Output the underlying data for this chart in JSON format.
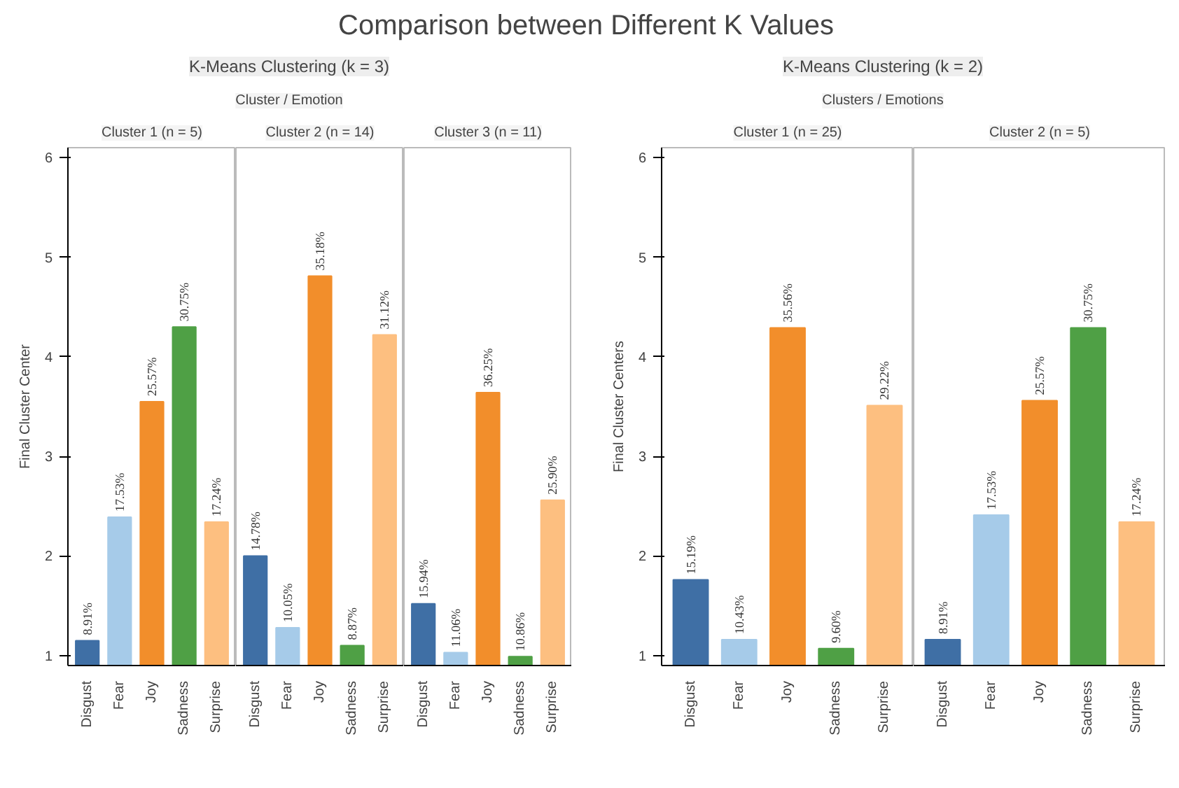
{
  "chart_data": [
    {
      "type": "other",
      "title": "Comparison between Different K Values"
    },
    {
      "type": "other",
      "title": "K-Means Clustering (k = 3)",
      "subtitle": "Cluster / Emotion"
    },
    {
      "type": "bar",
      "title": "Cluster 1 (n = 5)",
      "ylabel": "Final Cluster Center",
      "categories": [
        "Disgust",
        "Fear",
        "Joy",
        "Sadness",
        "Surprise"
      ],
      "values": [
        1.15,
        2.39,
        3.55,
        4.3,
        2.34
      ],
      "colors": [
        "#3f6fa5",
        "#a6cbe9",
        "#f28e2b",
        "#4fa045",
        "#fdbf80"
      ],
      "ylim": [
        0.9,
        6.1
      ],
      "yticks": [
        1,
        2,
        3,
        4,
        5,
        6
      ],
      "annotations": [
        {
          "text": "8.91%",
          "x": "Disgust",
          "y": 1.15
        },
        {
          "text": "17.53%",
          "x": "Fear",
          "y": 2.39
        },
        {
          "text": "25.57%",
          "x": "Joy",
          "y": 3.55
        },
        {
          "text": "30.75%",
          "x": "Sadness",
          "y": 4.3
        },
        {
          "text": "17.24%",
          "x": "Surprise",
          "y": 2.34
        }
      ]
    },
    {
      "type": "bar",
      "title": "Cluster 2 (n = 14)",
      "categories": [
        "Disgust",
        "Fear",
        "Joy",
        "Sadness",
        "Surprise"
      ],
      "values": [
        2.0,
        1.28,
        4.81,
        1.1,
        4.22
      ],
      "colors": [
        "#3f6fa5",
        "#a6cbe9",
        "#f28e2b",
        "#4fa045",
        "#fdbf80"
      ],
      "ylim": [
        0.9,
        6.1
      ],
      "yticks": [
        1,
        2,
        3,
        4,
        5,
        6
      ],
      "tick_labels": "x",
      "annotations": [
        {
          "text": "14.78%",
          "x": "Disgust",
          "y": 2.0
        },
        {
          "text": "10.05%",
          "x": "Fear",
          "y": 1.28
        },
        {
          "text": "35.18%",
          "x": "Joy",
          "y": 4.81
        },
        {
          "text": "8.87%",
          "x": "Sadness",
          "y": 1.1
        },
        {
          "text": "31.12%",
          "x": "Surprise",
          "y": 4.22
        }
      ]
    },
    {
      "type": "bar",
      "title": "Cluster 3 (n = 11)",
      "categories": [
        "Disgust",
        "Fear",
        "Joy",
        "Sadness",
        "Surprise"
      ],
      "values": [
        1.52,
        1.03,
        3.64,
        0.99,
        2.56
      ],
      "colors": [
        "#3f6fa5",
        "#a6cbe9",
        "#f28e2b",
        "#4fa045",
        "#fdbf80"
      ],
      "ylim": [
        0.9,
        6.1
      ],
      "yticks": [
        1,
        2,
        3,
        4,
        5,
        6
      ],
      "tick_labels": "x",
      "annotations": [
        {
          "text": "15.94%",
          "x": "Disgust",
          "y": 1.52
        },
        {
          "text": "11.06%",
          "x": "Fear",
          "y": 1.03
        },
        {
          "text": "36.25%",
          "x": "Joy",
          "y": 3.64
        },
        {
          "text": "10.86%",
          "x": "Sadness",
          "y": 0.99
        },
        {
          "text": "25.90%",
          "x": "Surprise",
          "y": 2.56
        }
      ]
    },
    {
      "type": "other",
      "title": "K-Means Clustering (k = 2)",
      "subtitle": "Clusters / Emotions"
    },
    {
      "type": "bar",
      "title": "Cluster 1 (n = 25)",
      "ylabel": "Final Cluster Centers",
      "categories": [
        "Disgust",
        "Fear",
        "Joy",
        "Sadness",
        "Surprise"
      ],
      "values": [
        1.76,
        1.16,
        4.29,
        1.07,
        3.51
      ],
      "colors": [
        "#3f6fa5",
        "#a6cbe9",
        "#f28e2b",
        "#4fa045",
        "#fdbf80"
      ],
      "ylim": [
        0.9,
        6.1
      ],
      "yticks": [
        1,
        2,
        3,
        4,
        5,
        6
      ],
      "annotations": [
        {
          "text": "15.19%",
          "x": "Disgust",
          "y": 1.76
        },
        {
          "text": "10.43%",
          "x": "Fear",
          "y": 1.16
        },
        {
          "text": "35.56%",
          "x": "Joy",
          "y": 4.29
        },
        {
          "text": "9.60%",
          "x": "Sadness",
          "y": 1.07
        },
        {
          "text": "29.22%",
          "x": "Surprise",
          "y": 3.51
        }
      ]
    },
    {
      "type": "bar",
      "title": "Cluster 2 (n = 5)",
      "categories": [
        "Disgust",
        "Fear",
        "Joy",
        "Sadness",
        "Surprise"
      ],
      "values": [
        1.16,
        2.41,
        3.56,
        4.29,
        2.34
      ],
      "colors": [
        "#3f6fa5",
        "#a6cbe9",
        "#f28e2b",
        "#4fa045",
        "#fdbf80"
      ],
      "ylim": [
        0.9,
        6.1
      ],
      "yticks": [
        1,
        2,
        3,
        4,
        5,
        6
      ],
      "tick_labels": "x",
      "annotations": [
        {
          "text": "8.91%",
          "x": "Disgust",
          "y": 1.16
        },
        {
          "text": "17.53%",
          "x": "Fear",
          "y": 2.41
        },
        {
          "text": "25.57%",
          "x": "Joy",
          "y": 3.56
        },
        {
          "text": "30.75%",
          "x": "Sadness",
          "y": 4.29
        },
        {
          "text": "17.24%",
          "x": "Surprise",
          "y": 2.34
        }
      ]
    }
  ]
}
